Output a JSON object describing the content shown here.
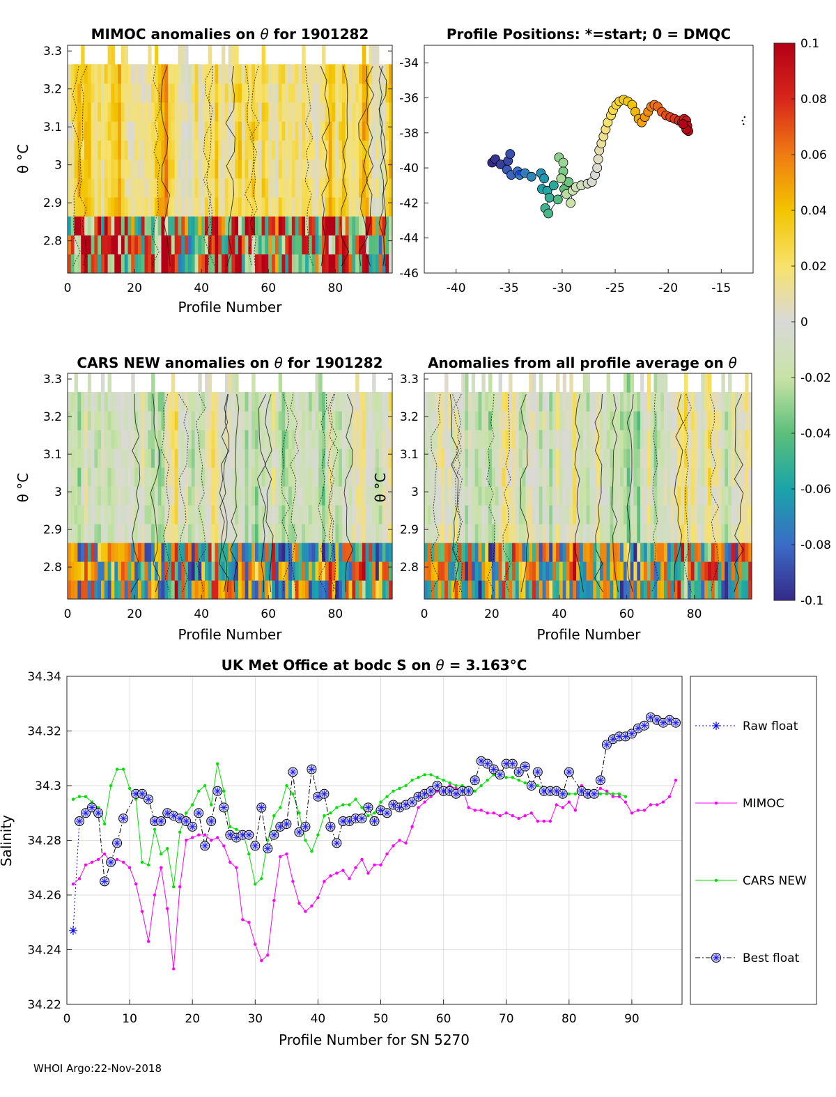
{
  "footer": "WHOI Argo:22-Nov-2018",
  "colormap": {
    "stops": [
      "#352a87",
      "#3b6cc7",
      "#1aa4a8",
      "#5cbf7a",
      "#c9e3a6",
      "#d9d9d9",
      "#f7e26b",
      "#f2c400",
      "#f07b12",
      "#d8261b",
      "#b30016"
    ],
    "range": [
      -0.1,
      0.1
    ],
    "ticks": [
      0.1,
      0.08,
      0.06,
      0.04,
      0.02,
      0,
      -0.02,
      -0.04,
      -0.06,
      -0.08,
      -0.1
    ],
    "tick_labels": [
      "0.1",
      "0.08",
      "0.06",
      "0.04",
      "0.02",
      "0",
      "-0.02",
      "-0.04",
      "-0.06",
      "-0.08",
      "-0.1"
    ]
  },
  "chart_data": [
    {
      "id": "mimoc",
      "type": "heatmap",
      "title_prefix": "MIMOC anomalies on ",
      "title_theta": "θ",
      "title_suffix": "  for 1901282",
      "xlabel": "Profile Number",
      "ylabel": "θ °C",
      "xlim": [
        0,
        97
      ],
      "ylim": [
        2.715,
        3.315
      ],
      "xticks": [
        0,
        20,
        40,
        60,
        80
      ],
      "xtick_labels": [
        "0",
        "20",
        "40",
        "60",
        "80"
      ],
      "yticks": [
        2.8,
        2.9,
        3.0,
        3.1,
        3.2,
        3.3
      ],
      "ytick_labels": [
        "2.8",
        "2.9",
        "3",
        "3.1",
        "3.2",
        "3.3"
      ],
      "bias": 0.022,
      "seed": 3
    },
    {
      "id": "positions",
      "type": "scatter",
      "title": "Profile Positions: *=start; 0 = DMQC",
      "xlim": [
        -43,
        -12
      ],
      "ylim": [
        -46,
        -33
      ],
      "xticks": [
        -40,
        -35,
        -30,
        -25,
        -20,
        -15
      ],
      "xtick_labels": [
        "-40",
        "-35",
        "-30",
        "-25",
        "-20",
        "-15"
      ],
      "yticks": [
        -34,
        -36,
        -38,
        -40,
        -42,
        -44,
        -46
      ],
      "ytick_labels": [
        "-34",
        "-36",
        "-38",
        "-40",
        "-42",
        "-44",
        "-46"
      ],
      "track": [
        [
          -36.6,
          -39.7
        ],
        [
          -36.3,
          -39.5
        ],
        [
          -35.8,
          -39.8
        ],
        [
          -35.1,
          -39.6
        ],
        [
          -34.9,
          -39.2
        ],
        [
          -35.2,
          -40.1
        ],
        [
          -34.8,
          -40.4
        ],
        [
          -34.2,
          -40.2
        ],
        [
          -34.0,
          -40.4
        ],
        [
          -33.5,
          -40.3
        ],
        [
          -32.9,
          -40.5
        ],
        [
          -32.0,
          -40.3
        ],
        [
          -31.7,
          -40.6
        ],
        [
          -31.9,
          -41.2
        ],
        [
          -31.4,
          -41.3
        ],
        [
          -30.8,
          -41.0
        ],
        [
          -31.2,
          -41.7
        ],
        [
          -31.6,
          -42.3
        ],
        [
          -31.3,
          -42.6
        ],
        [
          -30.4,
          -41.8
        ],
        [
          -29.8,
          -41.2
        ],
        [
          -29.4,
          -40.8
        ],
        [
          -29.9,
          -40.2
        ],
        [
          -30.3,
          -39.4
        ],
        [
          -29.9,
          -39.7
        ],
        [
          -30.1,
          -40.6
        ],
        [
          -29.6,
          -41.5
        ],
        [
          -29.2,
          -42.0
        ],
        [
          -29.0,
          -41.3
        ],
        [
          -28.7,
          -41.1
        ],
        [
          -28.2,
          -41.0
        ],
        [
          -27.6,
          -40.9
        ],
        [
          -27.2,
          -40.8
        ],
        [
          -26.9,
          -40.4
        ],
        [
          -26.7,
          -40.0
        ],
        [
          -26.6,
          -39.5
        ],
        [
          -26.5,
          -39.0
        ],
        [
          -26.3,
          -38.6
        ],
        [
          -26.1,
          -38.2
        ],
        [
          -25.9,
          -37.8
        ],
        [
          -25.7,
          -37.4
        ],
        [
          -25.4,
          -37.0
        ],
        [
          -25.2,
          -36.7
        ],
        [
          -24.9,
          -36.4
        ],
        [
          -24.6,
          -36.2
        ],
        [
          -24.2,
          -36.1
        ],
        [
          -23.8,
          -36.2
        ],
        [
          -23.4,
          -36.4
        ],
        [
          -23.1,
          -36.8
        ],
        [
          -22.8,
          -37.2
        ],
        [
          -22.5,
          -37.4
        ],
        [
          -22.2,
          -37.1
        ],
        [
          -21.9,
          -36.8
        ],
        [
          -21.6,
          -36.5
        ],
        [
          -21.3,
          -36.4
        ],
        [
          -21.0,
          -36.5
        ],
        [
          -20.6,
          -36.8
        ],
        [
          -20.2,
          -37.0
        ],
        [
          -19.8,
          -37.1
        ],
        [
          -19.4,
          -37.2
        ],
        [
          -19.0,
          -37.3
        ],
        [
          -18.7,
          -37.4
        ],
        [
          -18.5,
          -37.2
        ],
        [
          -18.3,
          -37.3
        ],
        [
          -18.2,
          -37.6
        ],
        [
          -18.1,
          -37.9
        ],
        [
          -18.3,
          -37.8
        ],
        [
          -18.6,
          -37.5
        ]
      ],
      "start_marker": [
        -34.1,
        -40.3
      ],
      "outliers": [
        [
          -13.0,
          -37.3
        ],
        [
          -12.8,
          -37.1
        ],
        [
          -12.9,
          -37.5
        ]
      ]
    },
    {
      "id": "cars",
      "type": "heatmap",
      "title_prefix": "CARS NEW anomalies on ",
      "title_theta": "θ",
      "title_suffix": " for 1901282",
      "xlabel": "Profile Number",
      "ylabel": "θ °C",
      "xlim": [
        0,
        97
      ],
      "ylim": [
        2.715,
        3.315
      ],
      "xticks": [
        0,
        20,
        40,
        60,
        80
      ],
      "xtick_labels": [
        "0",
        "20",
        "40",
        "60",
        "80"
      ],
      "yticks": [
        2.8,
        2.9,
        3.0,
        3.1,
        3.2,
        3.3
      ],
      "ytick_labels": [
        "2.8",
        "2.9",
        "3",
        "3.1",
        "3.2",
        "3.3"
      ],
      "bias": -0.004,
      "seed": 11
    },
    {
      "id": "avg",
      "type": "heatmap",
      "title_prefix": "Anomalies from all profile average on ",
      "title_theta": "θ",
      "title_suffix": "",
      "xlabel": "Profile Number",
      "ylabel": "θ °C",
      "xlim": [
        0,
        97
      ],
      "ylim": [
        2.715,
        3.315
      ],
      "xticks": [
        0,
        20,
        40,
        60,
        80
      ],
      "xtick_labels": [
        "0",
        "20",
        "40",
        "60",
        "80"
      ],
      "yticks": [
        2.8,
        2.9,
        3.0,
        3.1,
        3.2,
        3.3
      ],
      "ytick_labels": [
        "2.8",
        "2.9",
        "3",
        "3.1",
        "3.2",
        "3.3"
      ],
      "bias": -0.002,
      "seed": 23
    },
    {
      "id": "salinity",
      "type": "line",
      "title_prefix": "UK Met Office at bodc S on ",
      "title_theta": "θ",
      "title_suffix": " = 3.163°C",
      "xlabel": "Profile Number for SN 5270",
      "ylabel": "Salinity",
      "xlim": [
        0,
        98
      ],
      "ylim": [
        34.22,
        34.34
      ],
      "xticks": [
        0,
        10,
        20,
        30,
        40,
        50,
        60,
        70,
        80,
        90
      ],
      "xtick_labels": [
        "0",
        "10",
        "20",
        "30",
        "40",
        "50",
        "60",
        "70",
        "80",
        "90"
      ],
      "yticks": [
        34.22,
        34.24,
        34.26,
        34.28,
        34.3,
        34.32,
        34.34
      ],
      "ytick_labels": [
        "34.22",
        "34.24",
        "34.26",
        "34.28",
        "34.3",
        "34.32",
        "34.34"
      ],
      "series": [
        {
          "name": "Raw float",
          "color": "#0000ff",
          "style": "dotted",
          "marker": "star",
          "x": [
            1,
            2
          ],
          "values": [
            34.247,
            34.287
          ]
        },
        {
          "name": "MIMOC",
          "color": "#ff00ff",
          "style": "solid",
          "marker": "dot",
          "x": [
            1,
            2,
            3,
            4,
            5,
            6,
            7,
            8,
            9,
            10,
            11,
            12,
            13,
            14,
            15,
            16,
            17,
            18,
            19,
            20,
            21,
            22,
            23,
            24,
            25,
            26,
            27,
            28,
            29,
            30,
            31,
            32,
            33,
            34,
            35,
            36,
            37,
            38,
            39,
            40,
            41,
            42,
            43,
            44,
            45,
            46,
            47,
            48,
            49,
            50,
            51,
            52,
            53,
            54,
            55,
            56,
            57,
            58,
            59,
            60,
            61,
            62,
            63,
            64,
            65,
            66,
            67,
            68,
            69,
            70,
            71,
            72,
            73,
            74,
            75,
            76,
            77,
            78,
            79,
            80,
            81,
            82,
            83,
            84,
            85,
            86,
            87,
            88,
            89,
            90,
            91,
            92,
            93,
            94,
            95,
            96,
            97
          ],
          "values": [
            34.264,
            34.266,
            34.271,
            34.272,
            34.273,
            34.275,
            34.272,
            34.273,
            34.272,
            34.27,
            34.264,
            34.254,
            34.243,
            34.26,
            34.27,
            34.255,
            34.233,
            34.263,
            34.28,
            34.281,
            34.282,
            34.282,
            34.28,
            34.281,
            34.278,
            34.272,
            34.27,
            34.251,
            34.25,
            34.242,
            34.236,
            34.238,
            34.258,
            34.274,
            34.275,
            34.265,
            34.257,
            34.254,
            34.256,
            34.259,
            34.265,
            34.267,
            34.268,
            34.269,
            34.266,
            34.27,
            34.273,
            34.268,
            34.271,
            34.271,
            34.275,
            34.278,
            34.28,
            34.279,
            34.285,
            34.292,
            34.294,
            34.296,
            34.298,
            34.299,
            34.3,
            34.299,
            34.299,
            34.292,
            34.291,
            34.291,
            34.29,
            34.29,
            34.289,
            34.29,
            34.289,
            34.288,
            34.289,
            34.29,
            34.287,
            34.287,
            34.287,
            34.293,
            34.292,
            34.294,
            34.291,
            34.3,
            34.298,
            34.297,
            34.299,
            34.298,
            34.296,
            34.296,
            34.294,
            34.29,
            34.291,
            34.291,
            34.293,
            34.293,
            34.294,
            34.296,
            34.302
          ]
        },
        {
          "name": "CARS NEW",
          "color": "#00e000",
          "style": "solid",
          "marker": "dot",
          "x": [
            1,
            2,
            3,
            4,
            5,
            6,
            7,
            8,
            9,
            10,
            11,
            12,
            13,
            14,
            15,
            16,
            17,
            18,
            19,
            20,
            21,
            22,
            23,
            24,
            25,
            26,
            27,
            28,
            29,
            30,
            31,
            32,
            33,
            34,
            35,
            36,
            37,
            38,
            39,
            40,
            41,
            42,
            43,
            44,
            45,
            46,
            47,
            48,
            49,
            50,
            51,
            52,
            53,
            54,
            55,
            56,
            57,
            58,
            59,
            60,
            61,
            62,
            63,
            64,
            65,
            66,
            67,
            68,
            69,
            70,
            71,
            72,
            73,
            74,
            75,
            76,
            77,
            78,
            79,
            80,
            81,
            82,
            83,
            84,
            85,
            86,
            87,
            88,
            89
          ],
          "values": [
            34.295,
            34.296,
            34.296,
            34.294,
            34.292,
            34.286,
            34.3,
            34.306,
            34.306,
            34.299,
            34.295,
            34.272,
            34.271,
            34.284,
            34.275,
            34.277,
            34.263,
            34.283,
            34.29,
            34.293,
            34.298,
            34.3,
            34.293,
            34.308,
            34.298,
            34.285,
            34.284,
            34.283,
            34.275,
            34.264,
            34.266,
            34.28,
            34.289,
            34.292,
            34.3,
            34.297,
            34.29,
            34.28,
            34.276,
            34.282,
            34.289,
            34.29,
            34.292,
            34.293,
            34.293,
            34.295,
            34.292,
            34.289,
            34.29,
            34.294,
            34.296,
            34.298,
            34.299,
            34.3,
            34.302,
            34.303,
            34.304,
            34.304,
            34.303,
            34.302,
            34.301,
            34.3,
            34.3,
            34.299,
            34.298,
            34.3,
            34.302,
            34.304,
            34.304,
            34.303,
            34.303,
            34.302,
            34.301,
            34.3,
            34.3,
            34.299,
            34.298,
            34.297,
            34.298,
            34.297,
            34.297,
            34.298,
            34.298,
            34.297,
            34.297,
            34.297,
            34.297,
            34.297,
            34.296
          ]
        },
        {
          "name": "Best float",
          "color": "#000000",
          "style": "dashdot",
          "marker": "circle",
          "x": [
            2,
            3,
            4,
            5,
            6,
            7,
            8,
            9,
            11,
            12,
            13,
            14,
            15,
            16,
            17,
            18,
            19,
            20,
            21,
            22,
            23,
            24,
            25,
            26,
            27,
            28,
            29,
            30,
            31,
            32,
            33,
            34,
            35,
            36,
            37,
            38,
            39,
            40,
            41,
            42,
            43,
            44,
            45,
            46,
            47,
            48,
            49,
            50,
            51,
            52,
            53,
            54,
            55,
            56,
            57,
            58,
            59,
            60,
            61,
            62,
            63,
            64,
            65,
            66,
            67,
            68,
            69,
            70,
            71,
            72,
            73,
            74,
            75,
            76,
            77,
            78,
            79,
            80,
            82,
            83,
            84,
            85,
            86,
            87,
            88,
            89,
            90,
            91,
            92,
            93,
            94,
            95,
            96,
            97
          ],
          "values": [
            34.287,
            34.29,
            34.292,
            34.29,
            34.265,
            34.272,
            34.279,
            34.288,
            34.297,
            34.297,
            34.295,
            34.287,
            34.287,
            34.29,
            34.289,
            34.288,
            34.287,
            34.285,
            34.29,
            34.278,
            34.287,
            34.298,
            34.292,
            34.282,
            34.281,
            34.282,
            34.282,
            34.278,
            34.292,
            34.277,
            34.282,
            34.285,
            34.286,
            34.305,
            34.283,
            34.285,
            34.306,
            34.296,
            34.297,
            34.285,
            34.279,
            34.287,
            34.287,
            34.288,
            34.288,
            34.292,
            34.287,
            34.291,
            34.29,
            34.293,
            34.292,
            34.293,
            34.294,
            34.296,
            34.297,
            34.298,
            34.3,
            34.298,
            34.298,
            34.297,
            34.298,
            34.298,
            34.302,
            34.309,
            34.308,
            34.306,
            34.304,
            34.308,
            34.308,
            34.305,
            34.307,
            34.3,
            34.305,
            34.298,
            34.298,
            34.298,
            34.297,
            34.305,
            34.298,
            34.297,
            34.297,
            34.302,
            34.315,
            34.317,
            34.318,
            34.318,
            34.319,
            34.321,
            34.322,
            34.325,
            34.324,
            34.323,
            34.324,
            34.323
          ]
        }
      ]
    }
  ]
}
